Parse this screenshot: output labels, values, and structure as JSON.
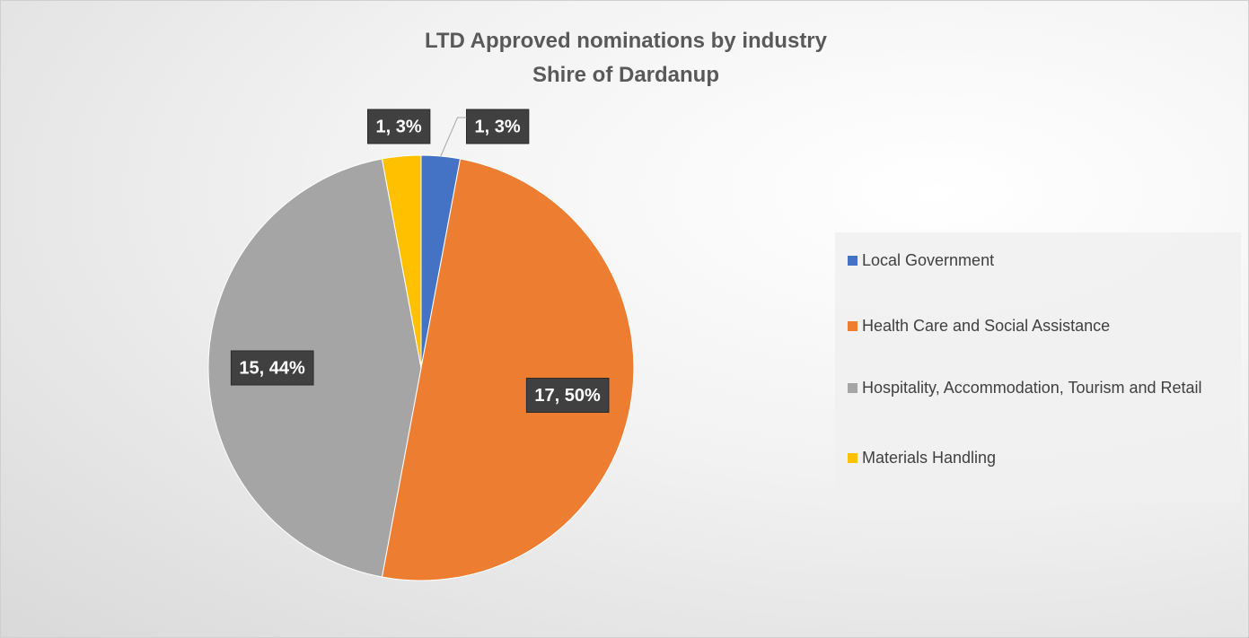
{
  "chart_data": {
    "type": "pie",
    "title": "LTD Approved nominations by industry",
    "subtitle": "Shire of Dardanup",
    "categories": [
      "Local Government",
      "Health Care and Social Assistance",
      "Hospitality, Accommodation, Tourism and Retail",
      "Materials Handling"
    ],
    "values": [
      1,
      17,
      15,
      1
    ],
    "value_labels": [
      "1, 3%",
      "17, 50%",
      "15, 44%",
      "1, 3%"
    ],
    "colors": [
      "#4472c4",
      "#ed7d31",
      "#a5a5a5",
      "#ffc000"
    ],
    "legend": "right"
  }
}
